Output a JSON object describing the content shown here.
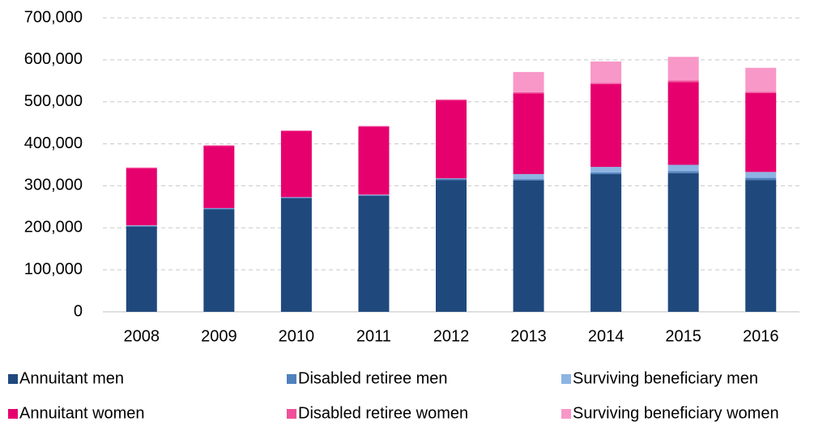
{
  "chart_data": {
    "type": "stacked_bar",
    "categories": [
      "2008",
      "2009",
      "2010",
      "2011",
      "2012",
      "2013",
      "2014",
      "2015",
      "2016"
    ],
    "series": [
      {
        "name": "Annuitant men",
        "color": "#1f497d",
        "values": [
          203000,
          244000,
          270000,
          276000,
          314000,
          313000,
          328000,
          330000,
          314000
        ]
      },
      {
        "name": "Disabled retiree men",
        "color": "#4f81bd",
        "values": [
          2000,
          2000,
          2000,
          2000,
          3000,
          3000,
          4000,
          5000,
          5000
        ]
      },
      {
        "name": "Surviving beneficiary men",
        "color": "#8db4e2",
        "values": [
          1000,
          1000,
          1000,
          1000,
          1000,
          12000,
          13000,
          15000,
          14000
        ]
      },
      {
        "name": "Annuitant women",
        "color": "#e6006e",
        "values": [
          136000,
          148000,
          157000,
          162000,
          186000,
          192000,
          197000,
          197000,
          188000
        ]
      },
      {
        "name": "Disabled retiree women",
        "color": "#f0509a",
        "values": [
          1000,
          1000,
          1000,
          1000,
          1000,
          3000,
          3000,
          4000,
          3000
        ]
      },
      {
        "name": "Surviving beneficiary women",
        "color": "#f898c8",
        "values": [
          1000,
          1000,
          1000,
          1000,
          1000,
          48000,
          51000,
          56000,
          57000
        ]
      }
    ],
    "ylim": [
      0,
      700000
    ],
    "yticks": [
      0,
      {
        "value": 100000,
        "label": "100,000"
      },
      {
        "value": 200000,
        "label": "200,000"
      },
      {
        "value": 300000,
        "label": "300,000"
      },
      {
        "value": 400000,
        "label": "400,000"
      },
      {
        "value": 500000,
        "label": "500,000"
      },
      {
        "value": 600000,
        "label": "600,000"
      },
      {
        "value": 700000,
        "label": "700,000"
      }
    ],
    "grid": true,
    "legend": "bottom"
  }
}
